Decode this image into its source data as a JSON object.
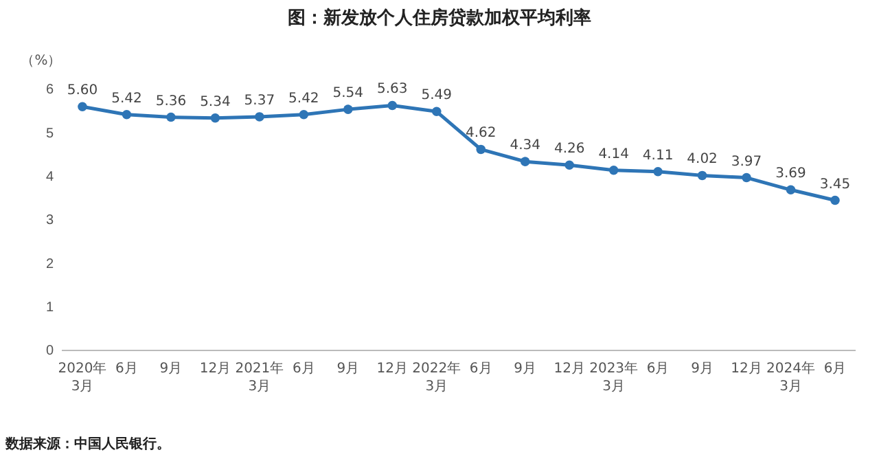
{
  "chart_data": {
    "type": "line",
    "title": "图：新发放个人住房贷款加权平均利率",
    "ylabel": "（%）",
    "categories": [
      "2020年\n3月",
      "6月",
      "9月",
      "12月",
      "2021年\n3月",
      "6月",
      "9月",
      "12月",
      "2022年\n3月",
      "6月",
      "9月",
      "12月",
      "2023年\n3月",
      "6月",
      "9月",
      "12月",
      "2024年\n3月",
      "6月"
    ],
    "series": [
      {
        "color": "#2e75b6",
        "values": [
          5.6,
          5.42,
          5.36,
          5.34,
          5.37,
          5.42,
          5.54,
          5.63,
          5.49,
          4.62,
          4.34,
          4.26,
          4.14,
          4.11,
          4.02,
          3.97,
          3.69,
          3.45
        ]
      }
    ],
    "value_labels": [
      "5.60",
      "5.42",
      "5.36",
      "5.34",
      "5.37",
      "5.42",
      "5.54",
      "5.63",
      "5.49",
      "4.62",
      "4.34",
      "4.26",
      "4.14",
      "4.11",
      "4.02",
      "3.97",
      "3.69",
      "3.45"
    ],
    "ylim": [
      0,
      6
    ],
    "yticks": [
      0,
      1,
      2,
      3,
      4,
      5,
      6
    ],
    "grid": false,
    "marker": "circle",
    "line_style": "solid",
    "annotations": [
      "数据来源：中国人民银行。"
    ]
  }
}
